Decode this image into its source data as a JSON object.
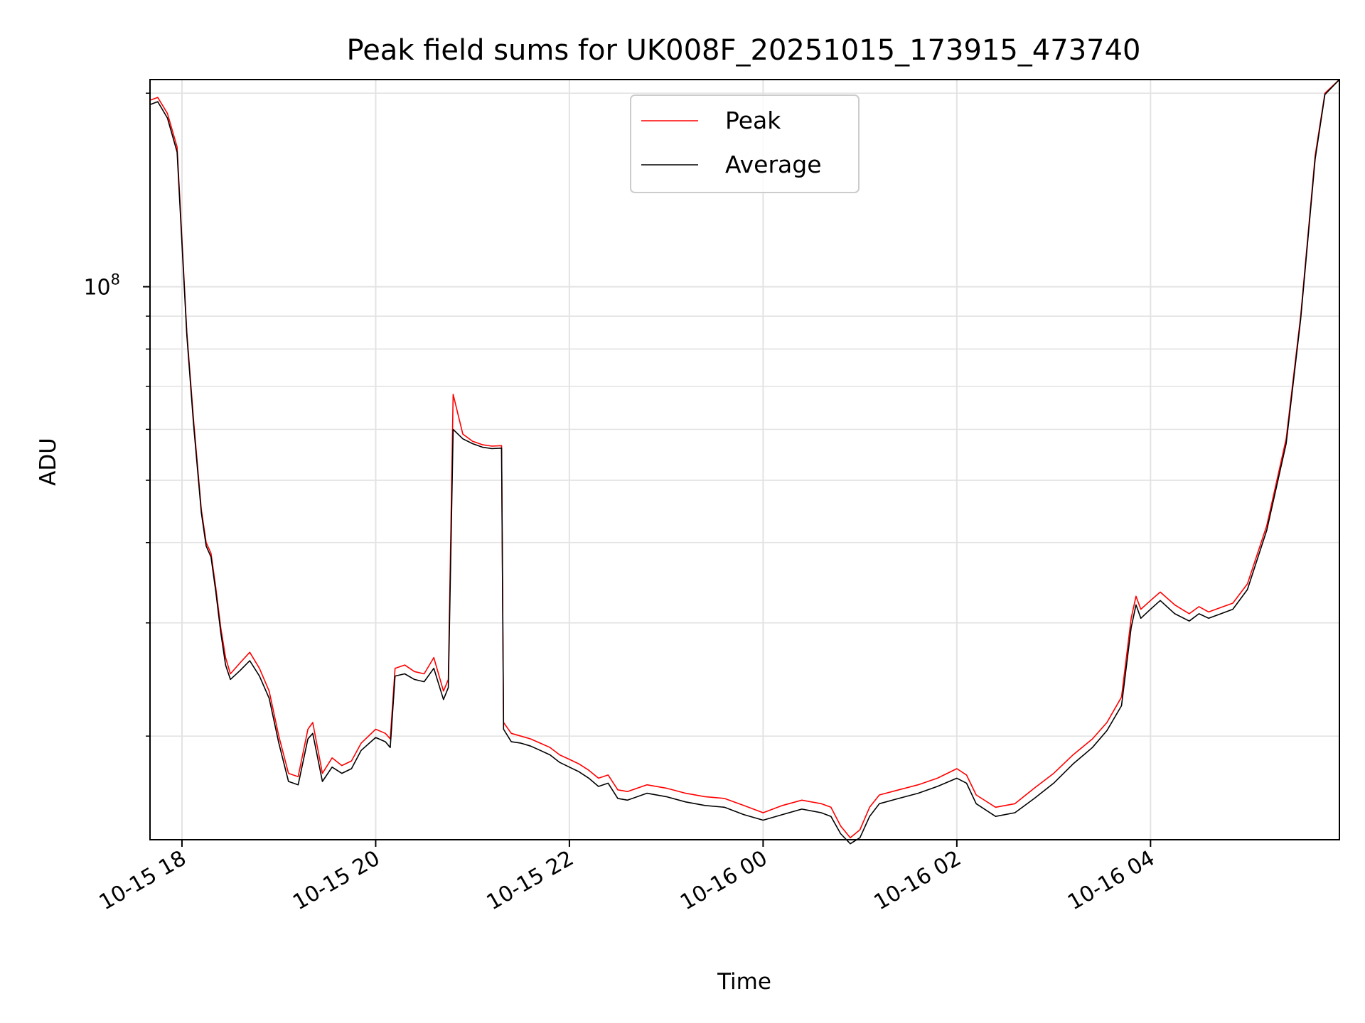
{
  "chart_data": {
    "type": "line",
    "title": "Peak field sums for UK008F_20251015_173915_473740",
    "xlabel": "Time",
    "ylabel": "ADU",
    "yscale": "log",
    "ylim": [
      13800000,
      210000000
    ],
    "xlim_hours": [
      17.67,
      5.95
    ],
    "x_ticks": [
      {
        "label": "10-15 18",
        "hour": 18
      },
      {
        "label": "10-15 20",
        "hour": 20
      },
      {
        "label": "10-15 22",
        "hour": 22
      },
      {
        "label": "10-16 00",
        "hour": 24
      },
      {
        "label": "10-16 02",
        "hour": 26
      },
      {
        "label": "10-16 04",
        "hour": 28
      }
    ],
    "y_major_tick": {
      "base": "10",
      "exponent": "8",
      "value": 100000000
    },
    "grid": true,
    "legend": {
      "position": "top-center",
      "entries": [
        "Peak",
        "Average"
      ]
    },
    "series": [
      {
        "name": "Peak",
        "color": "#ff0000",
        "points": [
          [
            17.67,
            195000000
          ],
          [
            17.75,
            197000000
          ],
          [
            17.85,
            186000000
          ],
          [
            17.95,
            165000000
          ],
          [
            18.05,
            85000000
          ],
          [
            18.12,
            62000000
          ],
          [
            18.2,
            45000000
          ],
          [
            18.25,
            40000000
          ],
          [
            18.3,
            38500000
          ],
          [
            18.35,
            34000000
          ],
          [
            18.4,
            29500000
          ],
          [
            18.45,
            26500000
          ],
          [
            18.5,
            25000000
          ],
          [
            18.6,
            26000000
          ],
          [
            18.7,
            27000000
          ],
          [
            18.8,
            25500000
          ],
          [
            18.9,
            23500000
          ],
          [
            19.0,
            20000000
          ],
          [
            19.1,
            17500000
          ],
          [
            19.2,
            17300000
          ],
          [
            19.3,
            20500000
          ],
          [
            19.35,
            21000000
          ],
          [
            19.45,
            17500000
          ],
          [
            19.55,
            18500000
          ],
          [
            19.65,
            18000000
          ],
          [
            19.75,
            18300000
          ],
          [
            19.85,
            19500000
          ],
          [
            20.0,
            20500000
          ],
          [
            20.1,
            20200000
          ],
          [
            20.15,
            19800000
          ],
          [
            20.2,
            25500000
          ],
          [
            20.3,
            25800000
          ],
          [
            20.4,
            25200000
          ],
          [
            20.5,
            25000000
          ],
          [
            20.6,
            26500000
          ],
          [
            20.7,
            23500000
          ],
          [
            20.75,
            24500000
          ],
          [
            20.8,
            68000000
          ],
          [
            20.9,
            59000000
          ],
          [
            21.0,
            57500000
          ],
          [
            21.1,
            56800000
          ],
          [
            21.2,
            56500000
          ],
          [
            21.3,
            56600000
          ],
          [
            21.32,
            21000000
          ],
          [
            21.4,
            20200000
          ],
          [
            21.5,
            20000000
          ],
          [
            21.6,
            19800000
          ],
          [
            21.7,
            19500000
          ],
          [
            21.8,
            19200000
          ],
          [
            21.9,
            18700000
          ],
          [
            22.0,
            18400000
          ],
          [
            22.1,
            18100000
          ],
          [
            22.2,
            17700000
          ],
          [
            22.3,
            17200000
          ],
          [
            22.4,
            17400000
          ],
          [
            22.5,
            16500000
          ],
          [
            22.6,
            16400000
          ],
          [
            22.8,
            16800000
          ],
          [
            23.0,
            16600000
          ],
          [
            23.2,
            16300000
          ],
          [
            23.4,
            16100000
          ],
          [
            23.6,
            16000000
          ],
          [
            23.8,
            15600000
          ],
          [
            24.0,
            15200000
          ],
          [
            24.2,
            15600000
          ],
          [
            24.4,
            15900000
          ],
          [
            24.6,
            15700000
          ],
          [
            24.7,
            15500000
          ],
          [
            24.8,
            14500000
          ],
          [
            24.9,
            13900000
          ],
          [
            25.0,
            14300000
          ],
          [
            25.1,
            15500000
          ],
          [
            25.2,
            16200000
          ],
          [
            25.4,
            16500000
          ],
          [
            25.6,
            16800000
          ],
          [
            25.8,
            17200000
          ],
          [
            26.0,
            17800000
          ],
          [
            26.1,
            17400000
          ],
          [
            26.2,
            16200000
          ],
          [
            26.4,
            15500000
          ],
          [
            26.6,
            15700000
          ],
          [
            26.8,
            16600000
          ],
          [
            27.0,
            17500000
          ],
          [
            27.2,
            18700000
          ],
          [
            27.4,
            19800000
          ],
          [
            27.55,
            21000000
          ],
          [
            27.7,
            23000000
          ],
          [
            27.8,
            30500000
          ],
          [
            27.85,
            33000000
          ],
          [
            27.9,
            31500000
          ],
          [
            28.0,
            32500000
          ],
          [
            28.1,
            33500000
          ],
          [
            28.25,
            32000000
          ],
          [
            28.4,
            31000000
          ],
          [
            28.5,
            31800000
          ],
          [
            28.6,
            31200000
          ],
          [
            28.7,
            31600000
          ],
          [
            28.85,
            32200000
          ],
          [
            29.0,
            34500000
          ],
          [
            29.2,
            42500000
          ],
          [
            29.4,
            58000000
          ],
          [
            29.55,
            90000000
          ],
          [
            29.7,
            160000000
          ],
          [
            29.8,
            200000000
          ],
          [
            29.95,
            210000000
          ]
        ]
      },
      {
        "name": "Average",
        "color": "#000000",
        "points": [
          [
            17.67,
            192000000
          ],
          [
            17.75,
            194000000
          ],
          [
            17.85,
            183000000
          ],
          [
            17.95,
            162000000
          ],
          [
            18.05,
            84000000
          ],
          [
            18.12,
            61000000
          ],
          [
            18.2,
            44500000
          ],
          [
            18.25,
            39500000
          ],
          [
            18.3,
            38000000
          ],
          [
            18.35,
            33500000
          ],
          [
            18.4,
            29000000
          ],
          [
            18.45,
            25800000
          ],
          [
            18.5,
            24500000
          ],
          [
            18.6,
            25300000
          ],
          [
            18.7,
            26200000
          ],
          [
            18.8,
            24800000
          ],
          [
            18.9,
            22900000
          ],
          [
            19.0,
            19500000
          ],
          [
            19.1,
            17000000
          ],
          [
            19.2,
            16800000
          ],
          [
            19.3,
            19800000
          ],
          [
            19.35,
            20200000
          ],
          [
            19.45,
            17000000
          ],
          [
            19.55,
            17900000
          ],
          [
            19.65,
            17500000
          ],
          [
            19.75,
            17800000
          ],
          [
            19.85,
            19000000
          ],
          [
            20.0,
            19900000
          ],
          [
            20.1,
            19600000
          ],
          [
            20.15,
            19200000
          ],
          [
            20.2,
            24800000
          ],
          [
            20.3,
            25000000
          ],
          [
            20.4,
            24500000
          ],
          [
            20.5,
            24300000
          ],
          [
            20.6,
            25500000
          ],
          [
            20.7,
            22800000
          ],
          [
            20.75,
            23800000
          ],
          [
            20.8,
            60000000
          ],
          [
            20.9,
            58000000
          ],
          [
            21.0,
            57000000
          ],
          [
            21.1,
            56300000
          ],
          [
            21.2,
            56000000
          ],
          [
            21.3,
            56100000
          ],
          [
            21.32,
            20500000
          ],
          [
            21.4,
            19600000
          ],
          [
            21.5,
            19500000
          ],
          [
            21.6,
            19300000
          ],
          [
            21.7,
            19000000
          ],
          [
            21.8,
            18700000
          ],
          [
            21.9,
            18200000
          ],
          [
            22.0,
            17900000
          ],
          [
            22.1,
            17600000
          ],
          [
            22.2,
            17200000
          ],
          [
            22.3,
            16700000
          ],
          [
            22.4,
            16900000
          ],
          [
            22.5,
            16000000
          ],
          [
            22.6,
            15900000
          ],
          [
            22.8,
            16300000
          ],
          [
            23.0,
            16100000
          ],
          [
            23.2,
            15800000
          ],
          [
            23.4,
            15600000
          ],
          [
            23.6,
            15500000
          ],
          [
            23.8,
            15100000
          ],
          [
            24.0,
            14800000
          ],
          [
            24.2,
            15100000
          ],
          [
            24.4,
            15400000
          ],
          [
            24.6,
            15200000
          ],
          [
            24.7,
            15000000
          ],
          [
            24.8,
            14100000
          ],
          [
            24.9,
            13600000
          ],
          [
            25.0,
            13900000
          ],
          [
            25.1,
            15000000
          ],
          [
            25.2,
            15700000
          ],
          [
            25.4,
            16000000
          ],
          [
            25.6,
            16300000
          ],
          [
            25.8,
            16700000
          ],
          [
            26.0,
            17200000
          ],
          [
            26.1,
            16900000
          ],
          [
            26.2,
            15700000
          ],
          [
            26.4,
            15000000
          ],
          [
            26.6,
            15200000
          ],
          [
            26.8,
            16000000
          ],
          [
            27.0,
            16900000
          ],
          [
            27.2,
            18100000
          ],
          [
            27.4,
            19200000
          ],
          [
            27.55,
            20400000
          ],
          [
            27.7,
            22300000
          ],
          [
            27.8,
            29500000
          ],
          [
            27.85,
            32000000
          ],
          [
            27.9,
            30500000
          ],
          [
            28.0,
            31500000
          ],
          [
            28.1,
            32500000
          ],
          [
            28.25,
            31000000
          ],
          [
            28.4,
            30200000
          ],
          [
            28.5,
            31000000
          ],
          [
            28.6,
            30500000
          ],
          [
            28.7,
            30900000
          ],
          [
            28.85,
            31500000
          ],
          [
            29.0,
            33800000
          ],
          [
            29.2,
            41800000
          ],
          [
            29.4,
            57000000
          ],
          [
            29.55,
            89000000
          ],
          [
            29.7,
            158000000
          ],
          [
            29.8,
            199000000
          ],
          [
            29.95,
            210000000
          ]
        ]
      }
    ]
  }
}
